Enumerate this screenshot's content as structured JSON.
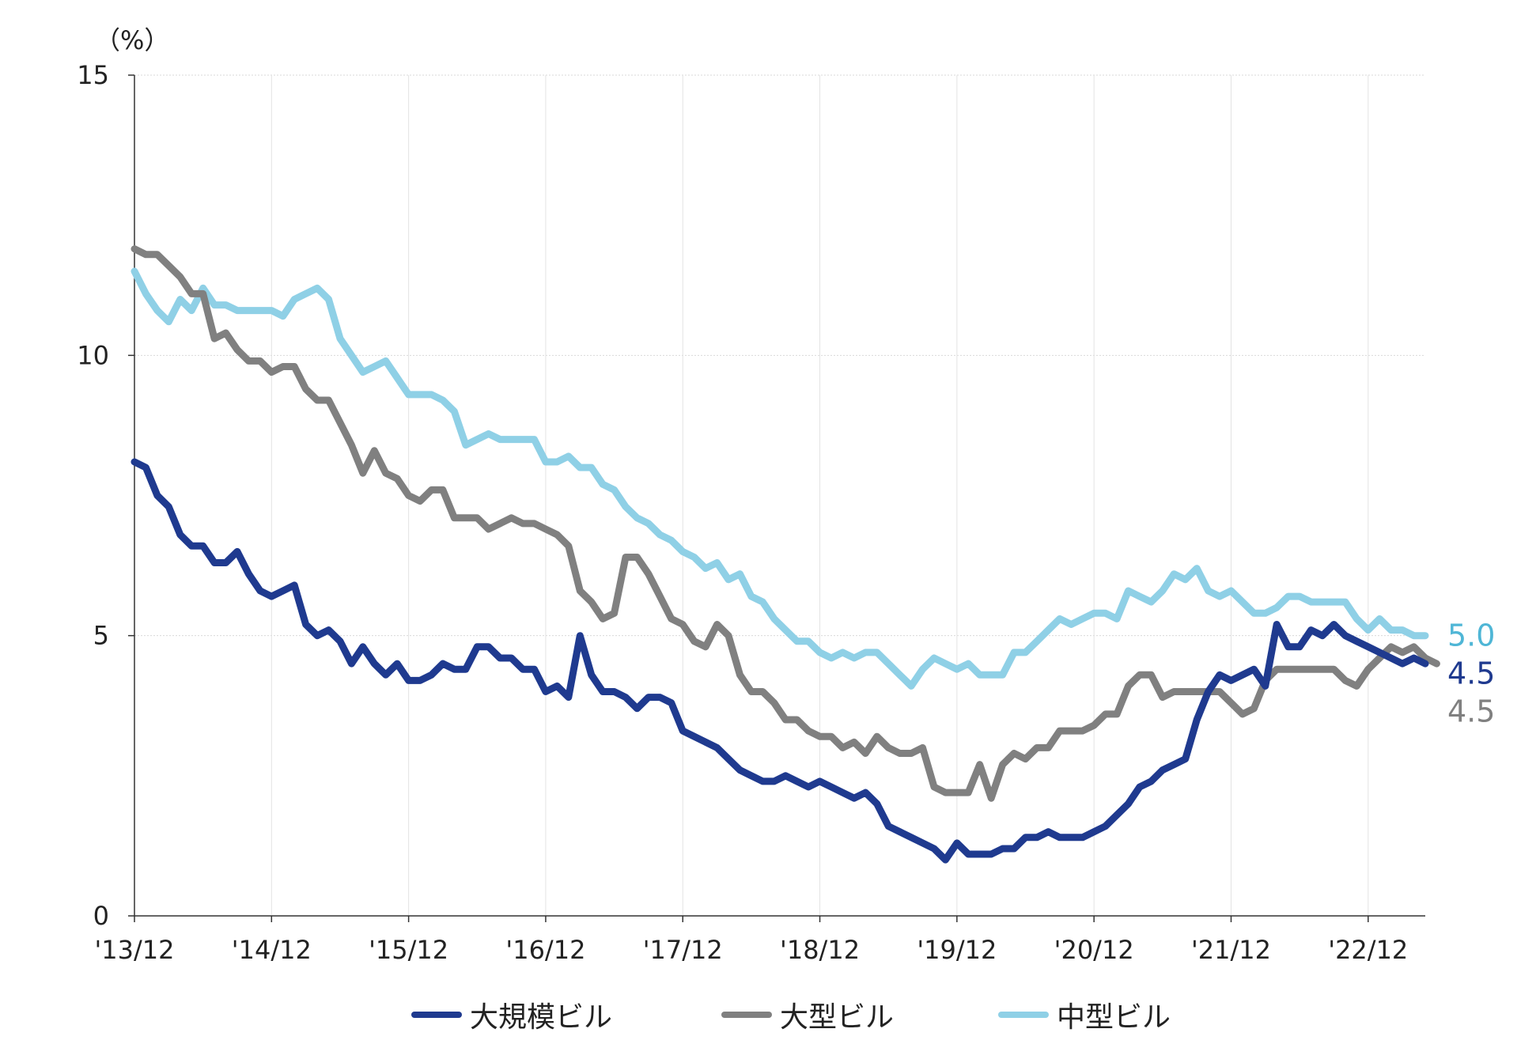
{
  "chart_data": {
    "type": "line",
    "unit_label": "（%）",
    "ylim": [
      0,
      15
    ],
    "yticks": [
      0,
      5,
      10,
      15
    ],
    "grid": true,
    "legend_position": "bottom",
    "x_start": "2013-12",
    "x_end": "2023-06",
    "x_tick_labels": [
      "'13/12",
      "'14/12",
      "'15/12",
      "'16/12",
      "'17/12",
      "'18/12",
      "'19/12",
      "'20/12",
      "'21/12",
      "'22/12"
    ],
    "series": [
      {
        "name": "大規模ビル",
        "color": "#1f3a8f",
        "end_label": "4.5",
        "values": [
          8.1,
          8.0,
          7.5,
          7.3,
          6.8,
          6.6,
          6.6,
          6.3,
          6.3,
          6.5,
          6.1,
          5.8,
          5.7,
          5.8,
          5.9,
          5.2,
          5.0,
          5.1,
          4.9,
          4.5,
          4.8,
          4.5,
          4.3,
          4.5,
          4.2,
          4.2,
          4.3,
          4.5,
          4.4,
          4.4,
          4.8,
          4.8,
          4.6,
          4.6,
          4.4,
          4.4,
          4.0,
          4.1,
          3.9,
          5.0,
          4.3,
          4.0,
          4.0,
          3.9,
          3.7,
          3.9,
          3.9,
          3.8,
          3.3,
          3.2,
          3.1,
          3.0,
          2.8,
          2.6,
          2.5,
          2.4,
          2.4,
          2.5,
          2.4,
          2.3,
          2.4,
          2.3,
          2.2,
          2.1,
          2.2,
          2.0,
          1.6,
          1.5,
          1.4,
          1.3,
          1.2,
          1.0,
          1.3,
          1.1,
          1.1,
          1.1,
          1.2,
          1.2,
          1.4,
          1.4,
          1.5,
          1.4,
          1.4,
          1.4,
          1.5,
          1.6,
          1.8,
          2.0,
          2.3,
          2.4,
          2.6,
          2.7,
          2.8,
          3.5,
          4.0,
          4.3,
          4.2,
          4.3,
          4.4,
          4.1,
          5.2,
          4.8,
          4.8,
          5.1,
          5.0,
          5.2,
          5.0,
          4.9,
          4.8,
          4.7,
          4.6,
          4.5,
          4.6,
          4.5
        ]
      },
      {
        "name": "大型ビル",
        "color": "#808080",
        "end_label": "4.5",
        "values": [
          11.9,
          11.8,
          11.8,
          11.6,
          11.4,
          11.1,
          11.1,
          10.3,
          10.4,
          10.1,
          9.9,
          9.9,
          9.7,
          9.8,
          9.8,
          9.4,
          9.2,
          9.2,
          8.8,
          8.4,
          7.9,
          8.3,
          7.9,
          7.8,
          7.5,
          7.4,
          7.6,
          7.6,
          7.1,
          7.1,
          7.1,
          6.9,
          7.0,
          7.1,
          7.0,
          7.0,
          6.9,
          6.8,
          6.6,
          5.8,
          5.6,
          5.3,
          5.4,
          6.4,
          6.4,
          6.1,
          5.7,
          5.3,
          5.2,
          4.9,
          4.8,
          5.2,
          5.0,
          4.3,
          4.0,
          4.0,
          3.8,
          3.5,
          3.5,
          3.3,
          3.2,
          3.2,
          3.0,
          3.1,
          2.9,
          3.2,
          3.0,
          2.9,
          2.9,
          3.0,
          2.3,
          2.2,
          2.2,
          2.2,
          2.7,
          2.1,
          2.7,
          2.9,
          2.8,
          3.0,
          3.0,
          3.3,
          3.3,
          3.3,
          3.4,
          3.6,
          3.6,
          4.1,
          4.3,
          4.3,
          3.9,
          4.0,
          4.0,
          4.0,
          4.0,
          4.0,
          3.8,
          3.6,
          3.7,
          4.2,
          4.4,
          4.4,
          4.4,
          4.4,
          4.4,
          4.4,
          4.2,
          4.1,
          4.4,
          4.6,
          4.8,
          4.7,
          4.8,
          4.6,
          4.5
        ]
      },
      {
        "name": "中型ビル",
        "color": "#8fd0e6",
        "end_label": "5.0",
        "values": [
          11.5,
          11.1,
          10.8,
          10.6,
          11.0,
          10.8,
          11.2,
          10.9,
          10.9,
          10.8,
          10.8,
          10.8,
          10.8,
          10.7,
          11.0,
          11.1,
          11.2,
          11.0,
          10.3,
          10.0,
          9.7,
          9.8,
          9.9,
          9.6,
          9.3,
          9.3,
          9.3,
          9.2,
          9.0,
          8.4,
          8.5,
          8.6,
          8.5,
          8.5,
          8.5,
          8.5,
          8.1,
          8.1,
          8.2,
          8.0,
          8.0,
          7.7,
          7.6,
          7.3,
          7.1,
          7.0,
          6.8,
          6.7,
          6.5,
          6.4,
          6.2,
          6.3,
          6.0,
          6.1,
          5.7,
          5.6,
          5.3,
          5.1,
          4.9,
          4.9,
          4.7,
          4.6,
          4.7,
          4.6,
          4.7,
          4.7,
          4.5,
          4.3,
          4.1,
          4.4,
          4.6,
          4.5,
          4.4,
          4.5,
          4.3,
          4.3,
          4.3,
          4.7,
          4.7,
          4.9,
          5.1,
          5.3,
          5.2,
          5.3,
          5.4,
          5.4,
          5.3,
          5.8,
          5.7,
          5.6,
          5.8,
          6.1,
          6.0,
          6.2,
          5.8,
          5.7,
          5.8,
          5.6,
          5.4,
          5.4,
          5.5,
          5.7,
          5.7,
          5.6,
          5.6,
          5.6,
          5.6,
          5.3,
          5.1,
          5.3,
          5.1,
          5.1,
          5.0,
          5.0
        ]
      }
    ]
  }
}
